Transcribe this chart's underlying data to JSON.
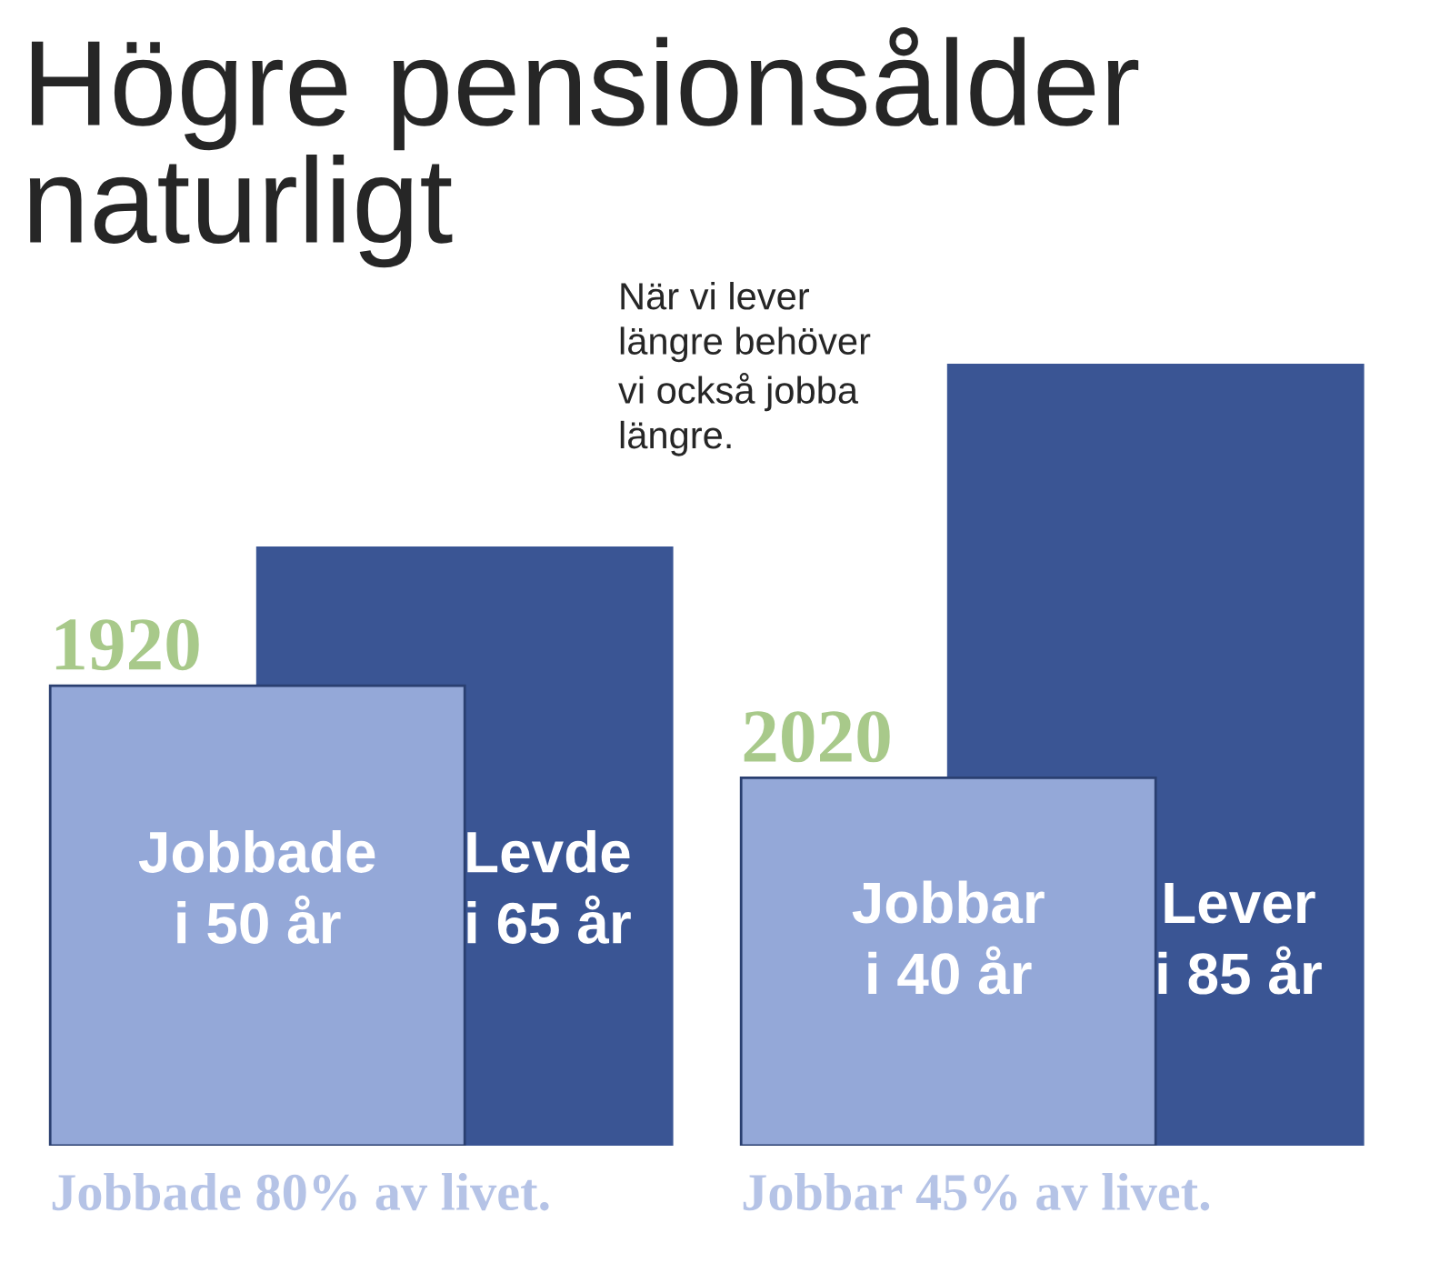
{
  "chart_data": {
    "type": "bar",
    "title": "Högre pensionsålder\nnaturligt",
    "subtitle": "När vi lever\nlängre behöver\nvi också jobba\nlängre.",
    "categories": [
      "1920",
      "2020"
    ],
    "series": [
      {
        "color": "#94a8d8",
        "values": [
          50,
          40
        ],
        "value_labels": [
          "Jobbade\ni 50 år",
          "Jobbar\ni 40 år"
        ]
      },
      {
        "color": "#3a5594",
        "values": [
          65,
          85
        ],
        "value_labels": [
          "Levde\ni 65 år",
          "Lever\ni 85 år"
        ]
      }
    ],
    "annotations": [
      "Jobbade 80% av livet.",
      "Jobbar 45% av livet."
    ],
    "legend": false
  }
}
